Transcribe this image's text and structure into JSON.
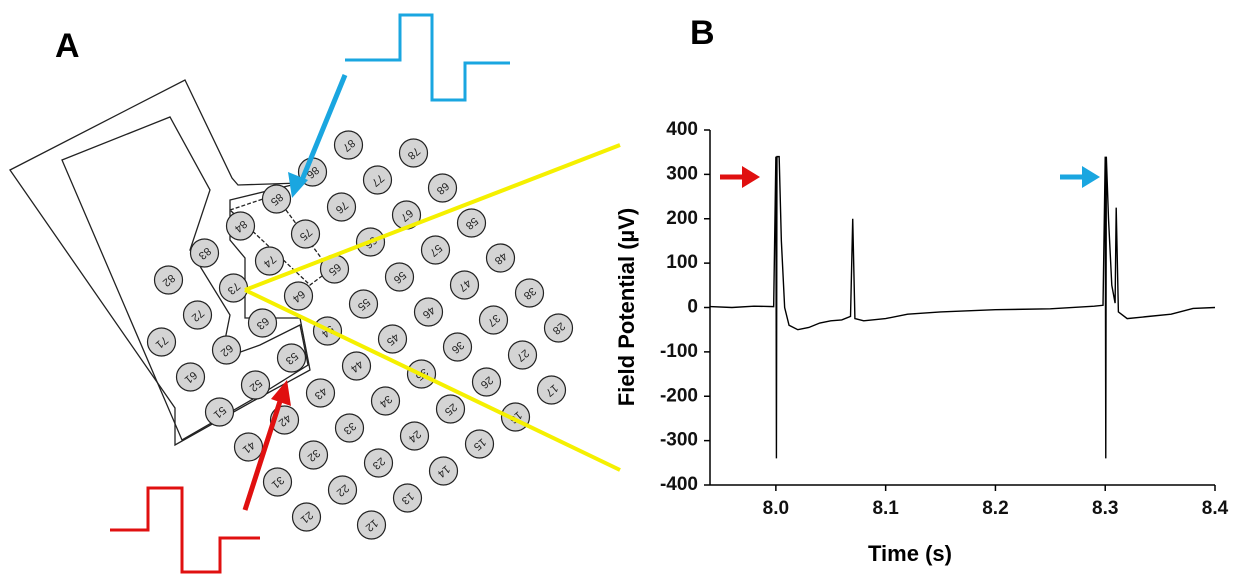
{
  "panel_a": {
    "label": "A",
    "electrodes": [
      "12",
      "13",
      "14",
      "15",
      "16",
      "17",
      "21",
      "22",
      "23",
      "24",
      "25",
      "26",
      "27",
      "28",
      "31",
      "32",
      "33",
      "34",
      "35",
      "36",
      "37",
      "38",
      "41",
      "42",
      "43",
      "44",
      "45",
      "46",
      "47",
      "48",
      "51",
      "52",
      "53",
      "54",
      "55",
      "56",
      "57",
      "58",
      "61",
      "62",
      "63",
      "64",
      "65",
      "66",
      "67",
      "68",
      "71",
      "72",
      "73",
      "74",
      "75",
      "76",
      "77",
      "78",
      "82",
      "83",
      "84",
      "85",
      "86",
      "87"
    ]
  },
  "chart_data": {
    "type": "line",
    "panel_label": "B",
    "xlabel": "Time (s)",
    "ylabel": "Field Potential (µV)",
    "xlim": [
      7.94,
      8.4
    ],
    "ylim": [
      -400,
      400
    ],
    "xticks": [
      {
        "value": 8,
        "label": "8.0"
      },
      8.1,
      8.2,
      8.3,
      8.4
    ],
    "yticks": [
      -400,
      -300,
      -200,
      -100,
      0,
      100,
      200,
      300,
      400
    ],
    "x": [
      7.94,
      7.96,
      7.98,
      7.998,
      8.0,
      8.0005,
      8.001,
      8.003,
      8.005,
      8.008,
      8.012,
      8.02,
      8.03,
      8.04,
      8.05,
      8.06,
      8.068,
      8.07,
      8.072,
      8.08,
      8.1,
      8.12,
      8.15,
      8.2,
      8.25,
      8.29,
      8.298,
      8.3,
      8.3005,
      8.301,
      8.303,
      8.306,
      8.309,
      8.31,
      8.312,
      8.32,
      8.34,
      8.36,
      8.38,
      8.4
    ],
    "series": [
      {
        "color": "#000000",
        "values": [
          2,
          0,
          3,
          2,
          340,
          -340,
          340,
          340,
          150,
          0,
          -40,
          -50,
          -45,
          -35,
          -30,
          -28,
          -20,
          200,
          -25,
          -30,
          -25,
          -15,
          -10,
          -5,
          -3,
          3,
          5,
          340,
          -340,
          340,
          200,
          50,
          10,
          225,
          -10,
          -25,
          -20,
          -15,
          -2,
          0
        ]
      }
    ]
  }
}
